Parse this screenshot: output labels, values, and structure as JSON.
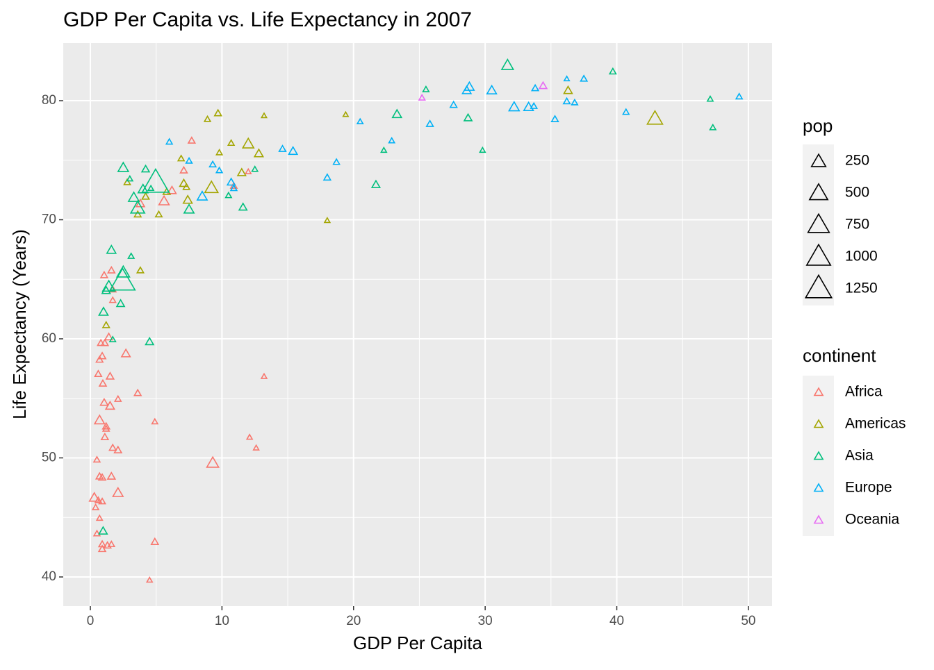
{
  "chart_data": {
    "type": "scatter",
    "title": "GDP Per Capita vs. Life Expectancy in 2007",
    "x_label": "GDP Per Capita",
    "y_label": "Life Expectancy (Years)",
    "xlim": [
      -2.06,
      51.8
    ],
    "ylim": [
      37.55,
      84.84
    ],
    "xticks": [
      0,
      10,
      20,
      30,
      40,
      50
    ],
    "yticks": [
      40,
      50,
      60,
      70,
      80
    ],
    "grid": true,
    "size_legend": {
      "title": "pop",
      "values": [
        250,
        500,
        750,
        1000,
        1250
      ]
    },
    "color_legend_title": "continent",
    "series": [
      {
        "name": "Africa",
        "color": "#F8766D",
        "x": [
          7.7,
          7.1,
          5.6,
          6.2,
          3.8,
          10.9,
          12.0,
          1.05,
          1.6,
          1.7,
          1.7,
          1.4,
          1.1,
          0.8,
          0.9,
          0.7,
          2.7,
          0.6,
          1.5,
          0.95,
          13.2,
          1.05,
          1.5,
          2.1,
          3.6,
          4.9,
          0.7,
          1.2,
          1.2,
          1.1,
          12.1,
          12.6,
          1.7,
          2.1,
          0.5,
          9.3,
          0.7,
          0.9,
          1.6,
          2.1,
          0.3,
          0.6,
          0.9,
          0.4,
          0.7,
          0.5,
          0.9,
          1.3,
          1.6,
          0.9,
          4.9,
          4.5
        ],
        "values": [
          76.6,
          74.1,
          71.5,
          72.4,
          71.3,
          72.8,
          74.0,
          65.3,
          65.7,
          64.1,
          63.2,
          60.1,
          59.6,
          59.6,
          58.5,
          58.2,
          58.7,
          57.0,
          56.8,
          56.2,
          56.8,
          54.6,
          54.3,
          54.9,
          55.4,
          53.0,
          53.1,
          52.6,
          52.4,
          51.7,
          51.7,
          50.8,
          50.8,
          50.6,
          49.8,
          49.5,
          48.4,
          48.3,
          48.4,
          47.0,
          46.6,
          46.4,
          46.3,
          45.8,
          44.9,
          43.6,
          42.7,
          42.6,
          42.7,
          42.3,
          42.9,
          39.7
        ],
        "sizes": [
          10,
          12,
          80,
          33,
          34,
          6,
          1,
          10,
          12,
          9,
          4,
          20,
          10,
          9,
          14,
          9,
          40,
          10,
          18,
          12,
          1,
          18,
          40,
          5,
          10,
          2,
          70,
          12,
          5,
          12,
          1,
          1,
          9,
          15,
          5,
          135,
          12,
          12,
          20,
          77,
          64,
          5,
          6,
          4,
          2,
          4,
          10,
          12,
          5,
          11,
          13,
          1
        ]
      },
      {
        "name": "Americas",
        "color": "#A3A500",
        "x": [
          8.9,
          9.7,
          13.2,
          19.4,
          36.3,
          42.9,
          10.7,
          12.0,
          9.8,
          12.8,
          6.9,
          2.8,
          7.1,
          7.3,
          5.8,
          11.5,
          9.2,
          7.4,
          4.2,
          3.6,
          5.2,
          18.0,
          3.8,
          1.2
        ],
        "values": [
          78.4,
          78.9,
          78.7,
          78.8,
          80.8,
          78.4,
          76.4,
          76.3,
          75.6,
          75.5,
          75.1,
          73.1,
          73.0,
          72.7,
          72.3,
          73.9,
          72.6,
          71.6,
          71.9,
          70.4,
          70.4,
          69.9,
          65.7,
          61.1
        ],
        "sizes": [
          4,
          11,
          0.3,
          0.3,
          33,
          301,
          4,
          108,
          3,
          40,
          5,
          6,
          30,
          7,
          13,
          28,
          190,
          44,
          13,
          9,
          7,
          1,
          8,
          9
        ]
      },
      {
        "name": "Asia",
        "color": "#00BF7D",
        "x": [
          31.7,
          39.7,
          25.5,
          47.1,
          23.3,
          28.7,
          47.3,
          22.3,
          29.8,
          21.7,
          12.5,
          10.5,
          11.6,
          2.5,
          4.2,
          3.0,
          4.6,
          4.0,
          3.3,
          7.5,
          3.6,
          4.96,
          1.6,
          3.1,
          2.5,
          2.45,
          1.4,
          1.2,
          2.3,
          1.0,
          1.7,
          4.5,
          0.97
        ],
        "values": [
          82.9,
          82.4,
          80.9,
          80.1,
          78.8,
          78.5,
          77.7,
          75.8,
          75.8,
          72.9,
          74.2,
          72.0,
          71.0,
          74.3,
          74.2,
          73.4,
          72.6,
          72.5,
          71.8,
          70.8,
          70.9,
          72.96,
          67.4,
          66.9,
          65.5,
          64.7,
          64.3,
          64.0,
          62.9,
          62.2,
          59.9,
          59.7,
          43.8
        ],
        "sizes": [
          127,
          7,
          4,
          2,
          49,
          23,
          3,
          1,
          1,
          27,
          2,
          3,
          24,
          85,
          19,
          2,
          1,
          65,
          91,
          69,
          224,
          1318,
          47,
          3,
          169,
          1110,
          150,
          29,
          23,
          48,
          3,
          27,
          32
        ]
      },
      {
        "name": "Europe",
        "color": "#00B0F6",
        "x": [
          28.6,
          28.8,
          30.5,
          27.6,
          25.8,
          20.5,
          32.2,
          33.3,
          33.7,
          33.8,
          36.2,
          37.5,
          36.2,
          36.8,
          35.3,
          40.7,
          49.3,
          22.9,
          14.6,
          15.4,
          18.7,
          18.0,
          9.3,
          9.8,
          6.0,
          7.5,
          10.7,
          10.9,
          8.5
        ],
        "values": [
          80.8,
          81.1,
          80.8,
          79.6,
          78.0,
          78.2,
          79.4,
          79.4,
          79.5,
          81.0,
          81.8,
          81.8,
          79.9,
          79.8,
          78.4,
          79.0,
          80.3,
          76.6,
          75.9,
          75.7,
          74.8,
          73.5,
          74.6,
          74.1,
          76.5,
          74.9,
          73.1,
          72.6,
          71.9
        ],
        "sizes": [
          40,
          58,
          61,
          10,
          10,
          2,
          82,
          60,
          5,
          9,
          0.3,
          7,
          8,
          4,
          10,
          4,
          5,
          2,
          10,
          38,
          5,
          10,
          7,
          4,
          4,
          4,
          22,
          5,
          71
        ]
      },
      {
        "name": "Oceania",
        "color": "#E76BF3",
        "x": [
          25.2,
          34.4
        ],
        "values": [
          80.2,
          81.2
        ],
        "sizes": [
          4,
          20
        ]
      }
    ]
  }
}
